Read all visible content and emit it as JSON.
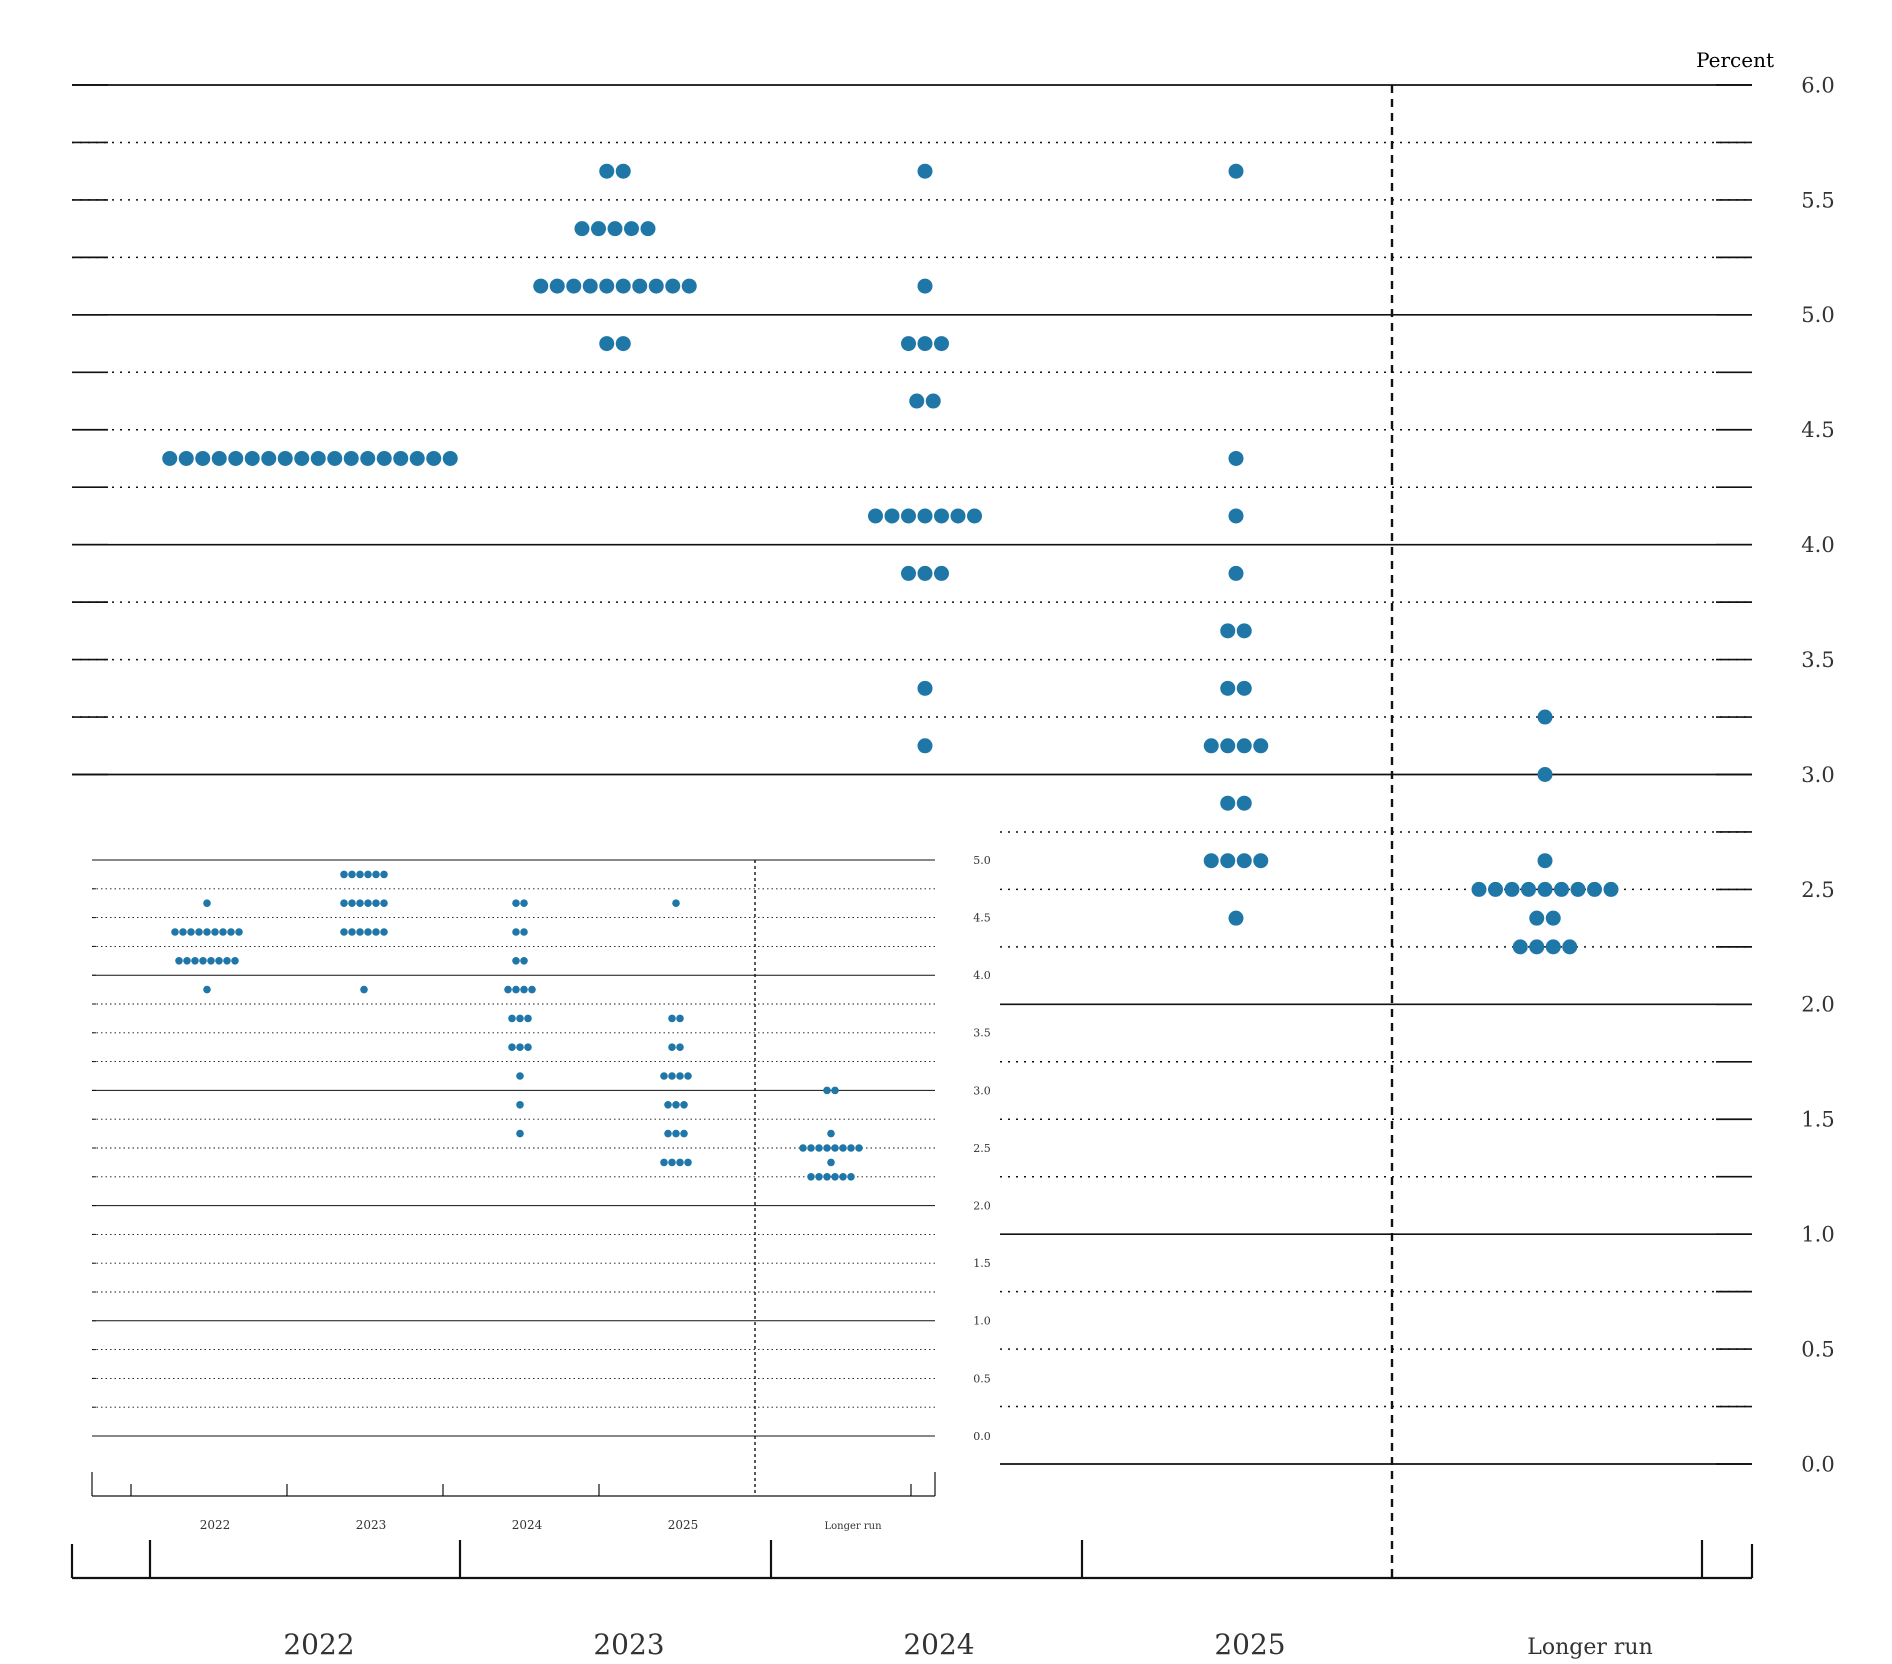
{
  "chart_data": [
    {
      "type": "scatter",
      "title": "",
      "unit_label": "Percent",
      "xlabel": "",
      "ylabel": "",
      "categories": [
        "2022",
        "2023",
        "2024",
        "2025",
        "Longer run"
      ],
      "ylim": [
        0,
        6
      ],
      "yticks": [
        "0.0",
        "0.5",
        "1.0",
        "1.5",
        "2.0",
        "2.5",
        "3.0",
        "3.5",
        "4.0",
        "4.5",
        "5.0",
        "5.5",
        "6.0"
      ],
      "grid": true,
      "dot_color": "#1f77a8",
      "points": {
        "2022": [
          [
            4.375,
            18
          ]
        ],
        "2023": [
          [
            5.625,
            2
          ],
          [
            5.375,
            5
          ],
          [
            5.125,
            10
          ],
          [
            4.875,
            2
          ]
        ],
        "2024": [
          [
            5.625,
            1
          ],
          [
            5.125,
            1
          ],
          [
            4.875,
            3
          ],
          [
            4.625,
            2
          ],
          [
            4.125,
            7
          ],
          [
            3.875,
            3
          ],
          [
            3.375,
            1
          ],
          [
            3.125,
            1
          ]
        ],
        "2025": [
          [
            5.625,
            1
          ],
          [
            4.375,
            1
          ],
          [
            4.125,
            1
          ],
          [
            3.875,
            1
          ],
          [
            3.625,
            2
          ],
          [
            3.375,
            2
          ],
          [
            3.125,
            4
          ],
          [
            2.875,
            2
          ],
          [
            2.625,
            4
          ],
          [
            2.375,
            1
          ]
        ],
        "Longer run": [
          [
            3.25,
            1
          ],
          [
            3.0,
            1
          ],
          [
            2.625,
            1
          ],
          [
            2.5,
            9
          ],
          [
            2.375,
            2
          ],
          [
            2.25,
            4
          ]
        ]
      }
    },
    {
      "type": "scatter",
      "title": "",
      "categories": [
        "2022",
        "2023",
        "2024",
        "2025",
        "Longer run"
      ],
      "ylim": [
        0,
        5
      ],
      "yticks": [
        "0.0",
        "0.5",
        "1.0",
        "1.5",
        "2.0",
        "2.5",
        "3.0",
        "3.5",
        "4.0",
        "4.5",
        "5.0"
      ],
      "grid": true,
      "dot_color": "#1f77a8",
      "points": {
        "2022": [
          [
            4.625,
            1
          ],
          [
            4.375,
            9
          ],
          [
            4.125,
            8
          ],
          [
            3.875,
            1
          ]
        ],
        "2023": [
          [
            4.875,
            6
          ],
          [
            4.625,
            6
          ],
          [
            4.375,
            6
          ],
          [
            3.875,
            1
          ]
        ],
        "2024": [
          [
            4.625,
            2
          ],
          [
            4.375,
            2
          ],
          [
            4.125,
            2
          ],
          [
            3.875,
            4
          ],
          [
            3.625,
            3
          ],
          [
            3.375,
            3
          ],
          [
            3.125,
            1
          ],
          [
            2.875,
            1
          ],
          [
            2.625,
            1
          ]
        ],
        "2025": [
          [
            4.625,
            1
          ],
          [
            3.625,
            2
          ],
          [
            3.375,
            2
          ],
          [
            3.125,
            4
          ],
          [
            2.875,
            3
          ],
          [
            2.625,
            3
          ],
          [
            2.375,
            4
          ]
        ],
        "Longer run": [
          [
            3.0,
            2
          ],
          [
            2.625,
            1
          ],
          [
            2.5,
            8
          ],
          [
            2.375,
            1
          ],
          [
            2.25,
            6
          ]
        ]
      }
    }
  ]
}
